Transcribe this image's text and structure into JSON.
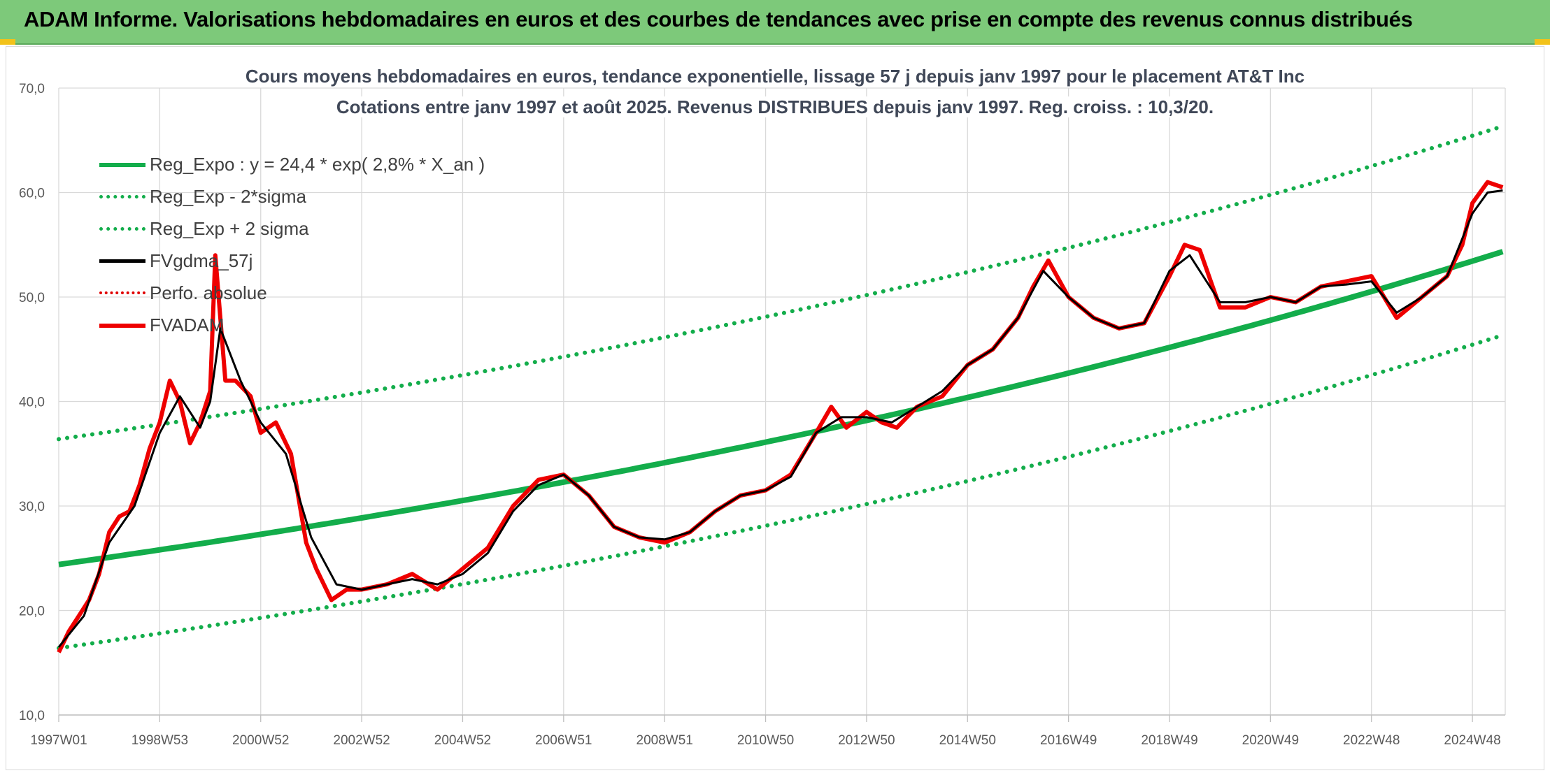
{
  "page": {
    "banner_title": "ADAM Informe. Valorisations hebdomadaires en euros et des courbes de tendances avec prise en compte des revenus connus distribués"
  },
  "chart_data": {
    "type": "line",
    "title": "Cours moyens hebdomadaires en euros, tendance exponentielle, lissage 57 j depuis janv 1997 pour le placement AT&T Inc",
    "subtitle": "Cotations entre janv 1997 et août 2025. Revenus DISTRIBUES depuis janv 1997. Reg. croiss. : 10,3/20.",
    "xlabel": "",
    "ylabel": "",
    "x_tick_labels": [
      "1997W01",
      "1998W53",
      "2000W52",
      "2002W52",
      "2004W52",
      "2006W51",
      "2008W51",
      "2010W50",
      "2012W50",
      "2014W50",
      "2016W49",
      "2018W49",
      "2020W49",
      "2022W48",
      "2024W48"
    ],
    "x_range": [
      1997.0,
      2025.65
    ],
    "y_tick_labels": [
      "10,0",
      "20,0",
      "30,0",
      "40,0",
      "50,0",
      "60,0",
      "70,0"
    ],
    "ylim": [
      10,
      70
    ],
    "grid": true,
    "legend_position": "top-left",
    "colors": {
      "reg_expo": "#13ad4b",
      "sigma": "#13ad4b",
      "fvgdma": "#000000",
      "perfo": "#e00000",
      "fvadam": "#ee0000",
      "banner": "#7dc97a"
    },
    "legend": [
      {
        "name": "Reg_Expo : y = 24,4 * exp( 2,8% *  X_an )",
        "style": "solid-green"
      },
      {
        "name": "Reg_Exp - 2*sigma",
        "style": "dotted-green"
      },
      {
        "name": "Reg_Exp + 2 sigma",
        "style": "dotted-green"
      },
      {
        "name": "FVgdma_57j",
        "style": "solid-black"
      },
      {
        "name": "Perfo. absolue",
        "style": "dotted-red"
      },
      {
        "name": "FVADAM",
        "style": "solid-red"
      }
    ],
    "regression": {
      "a": 24.4,
      "rate": 0.028,
      "lower_offset": -8.0,
      "upper_offset": 12.0
    },
    "series_fvadam": {
      "x": [
        1997.0,
        1997.2,
        1997.4,
        1997.6,
        1997.8,
        1998.0,
        1998.2,
        1998.4,
        1998.6,
        1998.8,
        1999.0,
        1999.2,
        1999.4,
        1999.6,
        1999.8,
        2000.0,
        2000.1,
        2000.3,
        2000.5,
        2000.8,
        2001.0,
        2001.3,
        2001.6,
        2001.9,
        2002.1,
        2002.4,
        2002.7,
        2003.0,
        2003.5,
        2004.0,
        2004.5,
        2005.0,
        2005.5,
        2006.0,
        2006.5,
        2007.0,
        2007.5,
        2008.0,
        2008.5,
        2009.0,
        2009.5,
        2010.0,
        2010.5,
        2011.0,
        2011.5,
        2012.0,
        2012.3,
        2012.6,
        2013.0,
        2013.3,
        2013.6,
        2014.0,
        2014.5,
        2015.0,
        2015.5,
        2016.0,
        2016.3,
        2016.6,
        2017.0,
        2017.5,
        2018.0,
        2018.5,
        2019.0,
        2019.3,
        2019.6,
        2020.0,
        2020.5,
        2021.0,
        2021.5,
        2022.0,
        2022.5,
        2023.0,
        2023.5,
        2024.0,
        2024.5,
        2024.8,
        2025.0,
        2025.3,
        2025.6
      ],
      "y": [
        16.0,
        18.0,
        19.5,
        21.0,
        23.5,
        27.5,
        29.0,
        29.5,
        32.0,
        35.5,
        38.0,
        42.0,
        40.0,
        36.0,
        38.0,
        41.0,
        54.0,
        42.0,
        42.0,
        40.5,
        37.0,
        38.0,
        35.0,
        26.5,
        24.0,
        21.0,
        22.0,
        22.0,
        22.5,
        23.5,
        22.0,
        24.0,
        26.0,
        30.0,
        32.5,
        33.0,
        31.0,
        28.0,
        27.0,
        26.5,
        27.5,
        29.5,
        31.0,
        31.5,
        33.0,
        37.0,
        39.5,
        37.5,
        39.0,
        38.0,
        37.5,
        39.5,
        40.5,
        43.5,
        45.0,
        48.0,
        51.0,
        53.5,
        50.0,
        48.0,
        47.0,
        47.5,
        52.0,
        55.0,
        54.5,
        49.0,
        49.0,
        50.0,
        49.5,
        51.0,
        51.5,
        52.0,
        48.0,
        50.0,
        52.0,
        55.0,
        59.0,
        61.0,
        60.5
      ]
    },
    "series_fvgdma": {
      "x": [
        1997.0,
        1997.5,
        1998.0,
        1998.5,
        1999.0,
        1999.4,
        1999.8,
        2000.0,
        2000.2,
        2000.6,
        2001.0,
        2001.5,
        2002.0,
        2002.5,
        2003.0,
        2003.5,
        2004.0,
        2004.5,
        2005.0,
        2005.5,
        2006.0,
        2006.5,
        2007.0,
        2007.5,
        2008.0,
        2008.5,
        2009.0,
        2009.5,
        2010.0,
        2010.5,
        2011.0,
        2011.5,
        2012.0,
        2012.5,
        2013.0,
        2013.5,
        2014.0,
        2014.5,
        2015.0,
        2015.5,
        2016.0,
        2016.5,
        2017.0,
        2017.5,
        2018.0,
        2018.5,
        2019.0,
        2019.4,
        2019.8,
        2020.0,
        2020.5,
        2021.0,
        2021.5,
        2022.0,
        2022.5,
        2023.0,
        2023.5,
        2024.0,
        2024.5,
        2025.0,
        2025.3,
        2025.6
      ],
      "y": [
        16.5,
        19.5,
        26.5,
        30.0,
        37.0,
        40.5,
        37.5,
        40.0,
        47.0,
        42.0,
        38.0,
        35.0,
        27.0,
        22.5,
        22.0,
        22.5,
        23.0,
        22.5,
        23.5,
        25.5,
        29.5,
        32.0,
        33.0,
        31.0,
        28.0,
        27.0,
        26.8,
        27.5,
        29.5,
        31.0,
        31.5,
        32.8,
        37.0,
        38.5,
        38.5,
        38.0,
        39.5,
        41.0,
        43.5,
        45.0,
        48.0,
        52.5,
        50.0,
        48.0,
        47.0,
        47.5,
        52.5,
        54.0,
        51.0,
        49.5,
        49.5,
        50.0,
        49.5,
        51.0,
        51.2,
        51.5,
        48.5,
        50.0,
        52.0,
        58.0,
        60.0,
        60.2
      ]
    }
  }
}
